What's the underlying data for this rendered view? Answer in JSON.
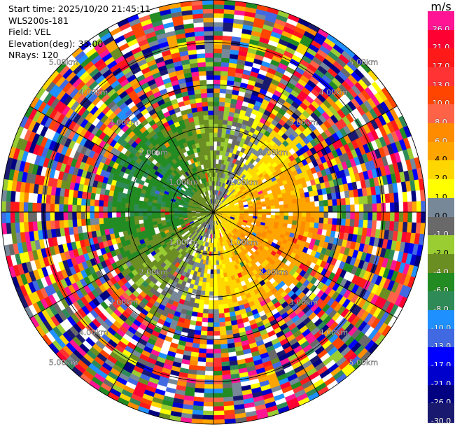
{
  "info": {
    "start_time": "Start time: 2025/10/20 21:45:11",
    "station": "WLS200s-181",
    "field": "Field: VEL",
    "elevation": "Elevation(deg): 35.00",
    "nrays": "NRays: 120"
  },
  "colorbar": {
    "unit": "m/s",
    "levels": [
      {
        "label": "26.0",
        "color": "#ff1493"
      },
      {
        "label": "21.0",
        "color": "#ff0033"
      },
      {
        "label": "17.0",
        "color": "#ff1a1a"
      },
      {
        "label": "13.0",
        "color": "#ff3333"
      },
      {
        "label": "10.0",
        "color": "#ff4500"
      },
      {
        "label": "8.0",
        "color": "#ff6347"
      },
      {
        "label": "6.0",
        "color": "#ff8c00"
      },
      {
        "label": "4.0",
        "color": "#ffa500"
      },
      {
        "label": "2.0",
        "color": "#ffd700"
      },
      {
        "label": "1.0",
        "color": "#ffff00"
      },
      {
        "label": "0.0",
        "color": "#778899"
      },
      {
        "label": "-1.0",
        "color": "#696969"
      },
      {
        "label": "-2.0",
        "color": "#9acd32"
      },
      {
        "label": "-4.0",
        "color": "#6b8e23"
      },
      {
        "label": "-6.0",
        "color": "#228b22"
      },
      {
        "label": "-8.0",
        "color": "#2e8b57"
      },
      {
        "label": "-10.0",
        "color": "#1e90ff"
      },
      {
        "label": "-13.0",
        "color": "#4169e1"
      },
      {
        "label": "-17.0",
        "color": "#0000ff"
      },
      {
        "label": "-21.0",
        "color": "#0000cd"
      },
      {
        "label": "-26.0",
        "color": "#000080"
      },
      {
        "label": "-30.0",
        "color": "#191970"
      }
    ]
  },
  "chart_data": {
    "type": "heatmap",
    "projection": "polar-ppi",
    "field": "VEL",
    "unit": "m/s",
    "elevation_deg": 35.0,
    "nrays": 120,
    "range_ring_labels": [
      "1.00km",
      "2.00km",
      "3.00km",
      "4.00km",
      "5.00km"
    ],
    "range_rings_km": [
      1,
      2,
      3,
      4,
      5
    ],
    "max_range_km": 5.0,
    "pattern": "dipole: negative (green/blue) to the west and north-west, positive (yellow/orange/red) to the east and south-east; beyond about 2.5 km the field is noise filling all colors",
    "noise_start_km": 2.5,
    "dipole_direction_deg": 110
  }
}
